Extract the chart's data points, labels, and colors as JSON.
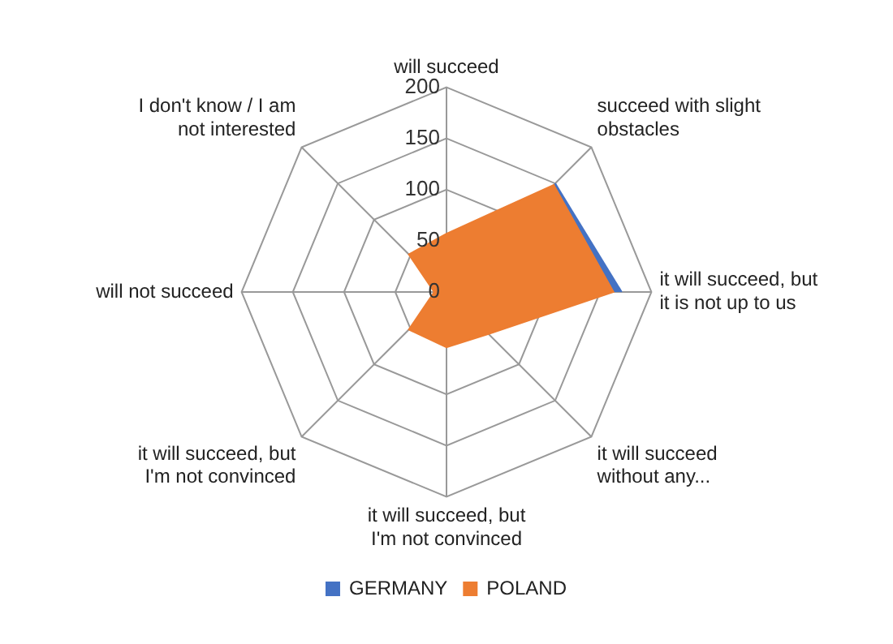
{
  "chart_data": {
    "type": "radar",
    "categories": [
      "will succeed",
      "succeed with slight obstacles",
      "it will succeed, but it is not up to us",
      "it will succeed without any...",
      "it will succeed, but I'm not convinced",
      "it will succeed, but I'm not convinced",
      "will not succeed",
      "I don't know / I am not interested"
    ],
    "series": [
      {
        "name": "GERMANY",
        "color": "#4472c4",
        "values": [
          null,
          150,
          171,
          null,
          null,
          null,
          null,
          null
        ]
      },
      {
        "name": "POLAND",
        "color": "#ed7d31",
        "values": [
          57,
          148,
          163,
          58,
          54,
          52,
          12,
          52
        ]
      }
    ],
    "ylim": [
      0,
      200
    ],
    "yticks": [
      0,
      50,
      100,
      150,
      200
    ],
    "grid": true,
    "legend": "bottom"
  }
}
